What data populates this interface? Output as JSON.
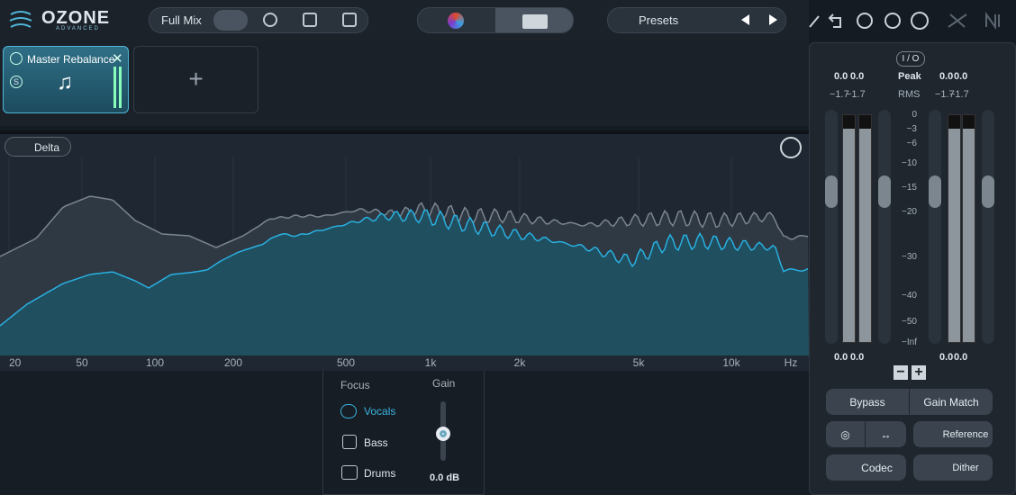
{
  "header": {
    "logo": "OZONE",
    "edition": "ADVANCED",
    "mode": "Full Mix",
    "presets": "Presets"
  },
  "modules": {
    "active": "Master Rebalance",
    "solo": "S"
  },
  "spectrum": {
    "delta": "Delta",
    "freq_labels": [
      "20",
      "50",
      "100",
      "200",
      "500",
      "1k",
      "2k",
      "5k",
      "10k",
      "Hz"
    ]
  },
  "rebalance": {
    "focus": "Focus",
    "gain": "Gain",
    "items": [
      "Vocals",
      "Bass",
      "Drums"
    ],
    "gain_value": "0.0 dB"
  },
  "meters": {
    "io": "I / O",
    "peak_label": "Peak",
    "rms_label": "RMS",
    "peak": [
      "0.0",
      "0.0",
      "0.0",
      "0.0"
    ],
    "rms": [
      "−1.7",
      "−1.7",
      "−1.7",
      "−1.7"
    ],
    "scale": [
      "0",
      "−3",
      "−6",
      "−10",
      "−15",
      "−20",
      "−30",
      "−40",
      "−50",
      "−Inf"
    ],
    "bottom": [
      "0.0",
      "0.0",
      "0.0",
      "0.0"
    ]
  },
  "buttons": {
    "bypass": "Bypass",
    "gain_match": "Gain Match",
    "reference": "Reference",
    "codec": "Codec",
    "dither": "Dither"
  }
}
